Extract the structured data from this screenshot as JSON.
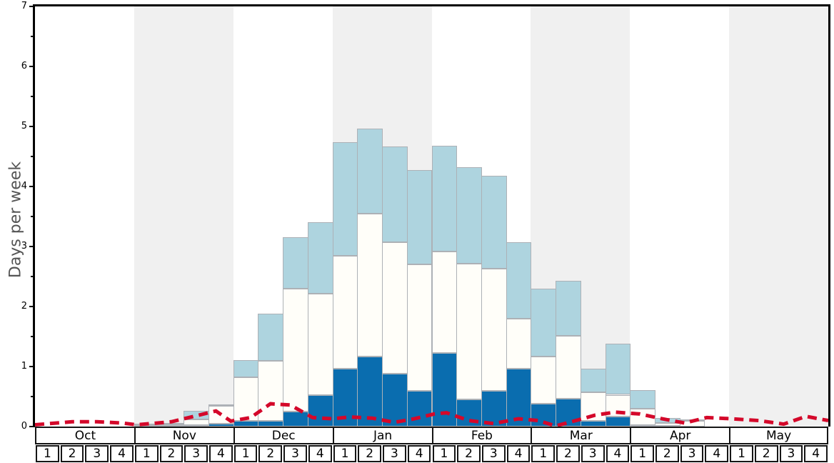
{
  "colors": {
    "frame": "#000000",
    "plot_bg": "#ffffff",
    "month_band_alt": "#f0f0f0",
    "bar_dark_blue": "#0a6daf",
    "bar_white": "#fffef9",
    "bar_light_blue": "#aed4df",
    "bar_border": "#adb1b6",
    "red_line": "#d4082a",
    "axis_label_gray": "#555555"
  },
  "chart_data": {
    "type": "bar",
    "subtype": "stacked-bars-with-dashed-line",
    "title": "",
    "xlabel": "",
    "ylabel": "Days per week",
    "ylim": [
      0,
      7
    ],
    "ytick_labels": [
      "0",
      "1",
      "2",
      "3",
      "4",
      "5",
      "6",
      "7"
    ],
    "minor_tick_step": 0.5,
    "grid": false,
    "legend": "none",
    "months": [
      "Oct",
      "Nov",
      "Dec",
      "Jan",
      "Feb",
      "Mar",
      "Apr",
      "May"
    ],
    "week_labels": [
      "1",
      "2",
      "3",
      "4"
    ],
    "categories": [
      "Oct w1",
      "Oct w2",
      "Oct w3",
      "Oct w4",
      "Nov w1",
      "Nov w2",
      "Nov w3",
      "Nov w4",
      "Dec w1",
      "Dec w2",
      "Dec w3",
      "Dec w4",
      "Jan w1",
      "Jan w2",
      "Jan w3",
      "Jan w4",
      "Feb w1",
      "Feb w2",
      "Feb w3",
      "Feb w4",
      "Mar w1",
      "Mar w2",
      "Mar w3",
      "Mar w4",
      "Apr w1",
      "Apr w2",
      "Apr w3",
      "Apr w4",
      "May w1",
      "May w2",
      "May w3",
      "May w4"
    ],
    "series": [
      {
        "name": "dark-blue-segment",
        "color": "#0a6daf",
        "values": [
          0,
          0,
          0,
          0,
          0,
          0.01,
          0.02,
          0.05,
          0.1,
          0.1,
          0.25,
          0.52,
          0.96,
          1.17,
          0.88,
          0.6,
          1.23,
          0.45,
          0.6,
          0.96,
          0.38,
          0.46,
          0.09,
          0.17,
          0.02,
          0.01,
          0,
          0,
          0,
          0,
          0,
          0
        ]
      },
      {
        "name": "white-segment",
        "color": "#fffef9",
        "values": [
          0,
          0,
          0,
          0,
          0.02,
          0.02,
          0.1,
          0.29,
          0.72,
          1.0,
          2.05,
          1.69,
          1.89,
          2.38,
          2.19,
          2.1,
          1.69,
          2.27,
          2.03,
          0.84,
          0.79,
          1.05,
          0.48,
          0.36,
          0.28,
          0.05,
          0.1,
          0,
          0,
          0,
          0,
          0
        ]
      },
      {
        "name": "light-blue-segment",
        "color": "#aed4df",
        "values": [
          0,
          0,
          0,
          0,
          0.03,
          0.03,
          0.14,
          0.01,
          0.29,
          0.78,
          0.85,
          1.2,
          1.89,
          1.41,
          1.6,
          1.57,
          1.76,
          1.6,
          1.55,
          1.27,
          1.13,
          0.92,
          0.39,
          0.85,
          0.31,
          0.08,
          0.02,
          0,
          0,
          0,
          0,
          0
        ]
      },
      {
        "name": "red-dashed-line",
        "type": "line",
        "color": "#d4082a",
        "x_unit": "weeks-from-Oct-w1-left-edge (0..32)",
        "points": [
          [
            0,
            0.03
          ],
          [
            0.6,
            0.05
          ],
          [
            1.5,
            0.08
          ],
          [
            2.5,
            0.08
          ],
          [
            3.5,
            0.06
          ],
          [
            4.1,
            0.03
          ],
          [
            5.5,
            0.08
          ],
          [
            6.5,
            0.18
          ],
          [
            7.3,
            0.26
          ],
          [
            7.9,
            0.09
          ],
          [
            8.7,
            0.15
          ],
          [
            9.5,
            0.38
          ],
          [
            10.3,
            0.36
          ],
          [
            11.2,
            0.15
          ],
          [
            12.0,
            0.13
          ],
          [
            12.7,
            0.16
          ],
          [
            13.6,
            0.14
          ],
          [
            14.5,
            0.07
          ],
          [
            15.3,
            0.13
          ],
          [
            16.1,
            0.21
          ],
          [
            16.6,
            0.23
          ],
          [
            17.5,
            0.1
          ],
          [
            18.5,
            0.05
          ],
          [
            19.5,
            0.13
          ],
          [
            20.3,
            0.1
          ],
          [
            21.0,
            0.01
          ],
          [
            21.9,
            0.11
          ],
          [
            22.6,
            0.19
          ],
          [
            23.4,
            0.24
          ],
          [
            24.4,
            0.21
          ],
          [
            25.3,
            0.13
          ],
          [
            26.2,
            0.06
          ],
          [
            27.1,
            0.15
          ],
          [
            28.1,
            0.13
          ],
          [
            29.2,
            0.1
          ],
          [
            30.2,
            0.04
          ],
          [
            31.1,
            0.17
          ],
          [
            32,
            0.1
          ]
        ]
      }
    ]
  }
}
